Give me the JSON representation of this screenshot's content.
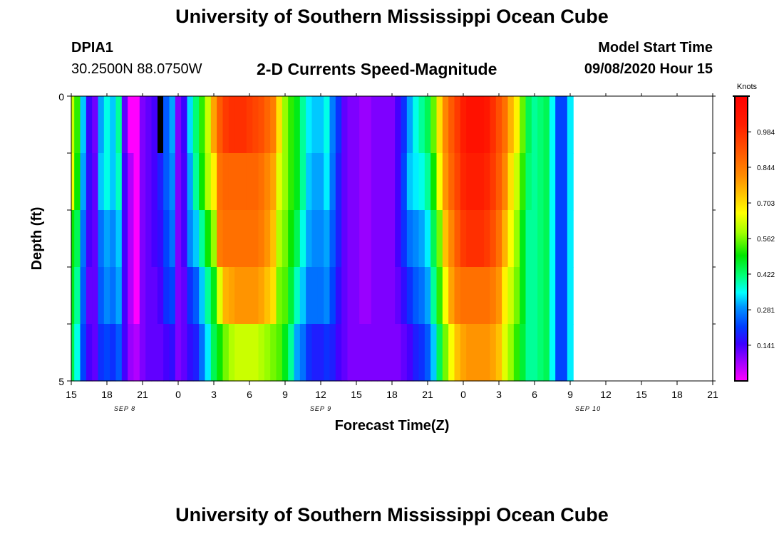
{
  "header": {
    "title": "University of Southern Mississippi Ocean Cube",
    "station": "DPIA1",
    "coordinates": "30.2500N 88.0750W",
    "subtitle": "2-D Currents Speed-Magnitude",
    "model_start_label": "Model Start Time",
    "model_start_value": "09/08/2020 Hour 15"
  },
  "footer": {
    "title": "University of Southern Mississippi Ocean Cube"
  },
  "chart_data": {
    "type": "heatmap",
    "title": "2-D Currents Speed-Magnitude",
    "xlabel": "Forecast Time(Z)",
    "ylabel": "Depth (ft)",
    "x_range_hours": [
      0,
      54
    ],
    "x_tick_hours": [
      0,
      3,
      6,
      9,
      12,
      15,
      18,
      21,
      24,
      27,
      30,
      33,
      36,
      39,
      42,
      45,
      48,
      51,
      54
    ],
    "x_tick_labels": [
      "15",
      "18",
      "21",
      "0",
      "3",
      "6",
      "9",
      "12",
      "15",
      "18",
      "21",
      "0",
      "3",
      "6",
      "9",
      "12",
      "15",
      "18",
      "21"
    ],
    "date_labels": [
      {
        "hour": 4.5,
        "text": "SEP 8"
      },
      {
        "hour": 21,
        "text": "SEP 9"
      },
      {
        "hour": 43.5,
        "text": "SEP 10"
      }
    ],
    "y_range": [
      0,
      5
    ],
    "y_tick_labels": [
      "0",
      "5"
    ],
    "depth_rows": 5,
    "time_step_hours": 0.5,
    "colorbar": {
      "unit": "Knots",
      "min": 0,
      "max": 1.125,
      "tick_labels": [
        "0.141",
        "0.281",
        "0.422",
        "0.562",
        "0.703",
        "0.844",
        "0.984"
      ]
    },
    "no_data_marker": {
      "hour": 7.5,
      "depth_row": 0
    },
    "speed_knots": [
      [
        0.62,
        0.52,
        0.32,
        0.15,
        0.11,
        0.3,
        0.36,
        0.32,
        0.4,
        0.12,
        0.0,
        0.0,
        0.1,
        0.12,
        0.14,
        0.18,
        0.24,
        0.3,
        0.1,
        0.15,
        0.33,
        0.42,
        0.52,
        0.62,
        0.78,
        0.9,
        0.96,
        0.98,
        0.98,
        0.98,
        0.96,
        0.94,
        0.92,
        0.88,
        0.84,
        0.7,
        0.58,
        0.52,
        0.48,
        0.4,
        0.34,
        0.32,
        0.32,
        0.36,
        0.27,
        0.2,
        0.12,
        0.1,
        0.1,
        0.08,
        0.08,
        0.1,
        0.1,
        0.1,
        0.1,
        0.14,
        0.2,
        0.3,
        0.36,
        0.4,
        0.44,
        0.55,
        0.7,
        0.82,
        0.9,
        0.96,
        1.02,
        1.06,
        1.06,
        1.06,
        1.04,
        0.98,
        0.92,
        0.86,
        0.76,
        0.68,
        0.55,
        0.44,
        0.4,
        0.42,
        0.44,
        0.35,
        0.22,
        0.22,
        0.34
      ],
      [
        0.65,
        0.5,
        0.3,
        0.16,
        0.12,
        0.32,
        0.36,
        0.32,
        0.38,
        0.14,
        0.06,
        0.0,
        0.1,
        0.12,
        0.14,
        0.18,
        0.24,
        0.28,
        0.1,
        0.14,
        0.3,
        0.4,
        0.5,
        0.6,
        0.68,
        0.86,
        0.88,
        0.88,
        0.88,
        0.88,
        0.88,
        0.88,
        0.86,
        0.82,
        0.78,
        0.64,
        0.58,
        0.52,
        0.48,
        0.4,
        0.32,
        0.3,
        0.3,
        0.34,
        0.26,
        0.18,
        0.12,
        0.1,
        0.1,
        0.08,
        0.08,
        0.1,
        0.1,
        0.1,
        0.1,
        0.14,
        0.22,
        0.32,
        0.34,
        0.36,
        0.4,
        0.5,
        0.66,
        0.8,
        0.88,
        0.94,
        1.0,
        1.02,
        1.02,
        1.02,
        1.0,
        0.96,
        0.9,
        0.82,
        0.7,
        0.62,
        0.52,
        0.42,
        0.4,
        0.42,
        0.44,
        0.35,
        0.22,
        0.22,
        0.34
      ],
      [
        0.5,
        0.44,
        0.26,
        0.14,
        0.12,
        0.26,
        0.3,
        0.28,
        0.32,
        0.14,
        0.06,
        0.0,
        0.1,
        0.12,
        0.14,
        0.16,
        0.22,
        0.26,
        0.1,
        0.14,
        0.28,
        0.32,
        0.4,
        0.5,
        0.58,
        0.84,
        0.86,
        0.86,
        0.86,
        0.86,
        0.86,
        0.86,
        0.84,
        0.8,
        0.74,
        0.6,
        0.56,
        0.5,
        0.44,
        0.36,
        0.3,
        0.28,
        0.28,
        0.3,
        0.24,
        0.18,
        0.12,
        0.1,
        0.1,
        0.08,
        0.08,
        0.1,
        0.1,
        0.1,
        0.1,
        0.14,
        0.2,
        0.26,
        0.28,
        0.3,
        0.34,
        0.44,
        0.56,
        0.74,
        0.82,
        0.9,
        0.96,
        0.98,
        0.98,
        0.98,
        0.96,
        0.92,
        0.86,
        0.76,
        0.66,
        0.58,
        0.48,
        0.4,
        0.4,
        0.42,
        0.44,
        0.35,
        0.22,
        0.22,
        0.34
      ],
      [
        0.48,
        0.4,
        0.24,
        0.12,
        0.12,
        0.24,
        0.28,
        0.26,
        0.3,
        0.14,
        0.06,
        0.0,
        0.1,
        0.12,
        0.12,
        0.14,
        0.2,
        0.22,
        0.1,
        0.12,
        0.2,
        0.24,
        0.32,
        0.4,
        0.48,
        0.64,
        0.76,
        0.78,
        0.8,
        0.8,
        0.8,
        0.8,
        0.78,
        0.74,
        0.7,
        0.56,
        0.54,
        0.46,
        0.38,
        0.32,
        0.26,
        0.26,
        0.26,
        0.28,
        0.22,
        0.16,
        0.12,
        0.1,
        0.1,
        0.08,
        0.08,
        0.1,
        0.1,
        0.1,
        0.1,
        0.12,
        0.16,
        0.2,
        0.24,
        0.26,
        0.3,
        0.4,
        0.52,
        0.66,
        0.78,
        0.84,
        0.86,
        0.86,
        0.86,
        0.86,
        0.86,
        0.84,
        0.8,
        0.68,
        0.62,
        0.56,
        0.48,
        0.4,
        0.4,
        0.42,
        0.44,
        0.35,
        0.22,
        0.22,
        0.34
      ],
      [
        0.45,
        0.36,
        0.22,
        0.14,
        0.12,
        0.2,
        0.22,
        0.2,
        0.24,
        0.14,
        0.08,
        0.06,
        0.1,
        0.12,
        0.12,
        0.12,
        0.14,
        0.16,
        0.1,
        0.12,
        0.16,
        0.18,
        0.26,
        0.34,
        0.44,
        0.5,
        0.56,
        0.6,
        0.62,
        0.62,
        0.62,
        0.62,
        0.6,
        0.58,
        0.56,
        0.54,
        0.48,
        0.4,
        0.3,
        0.26,
        0.2,
        0.18,
        0.18,
        0.2,
        0.18,
        0.14,
        0.12,
        0.1,
        0.1,
        0.1,
        0.1,
        0.1,
        0.1,
        0.1,
        0.1,
        0.1,
        0.12,
        0.14,
        0.18,
        0.2,
        0.24,
        0.32,
        0.44,
        0.56,
        0.66,
        0.74,
        0.78,
        0.8,
        0.8,
        0.8,
        0.8,
        0.78,
        0.74,
        0.64,
        0.58,
        0.52,
        0.46,
        0.4,
        0.4,
        0.42,
        0.44,
        0.35,
        0.22,
        0.22,
        0.34
      ]
    ]
  }
}
